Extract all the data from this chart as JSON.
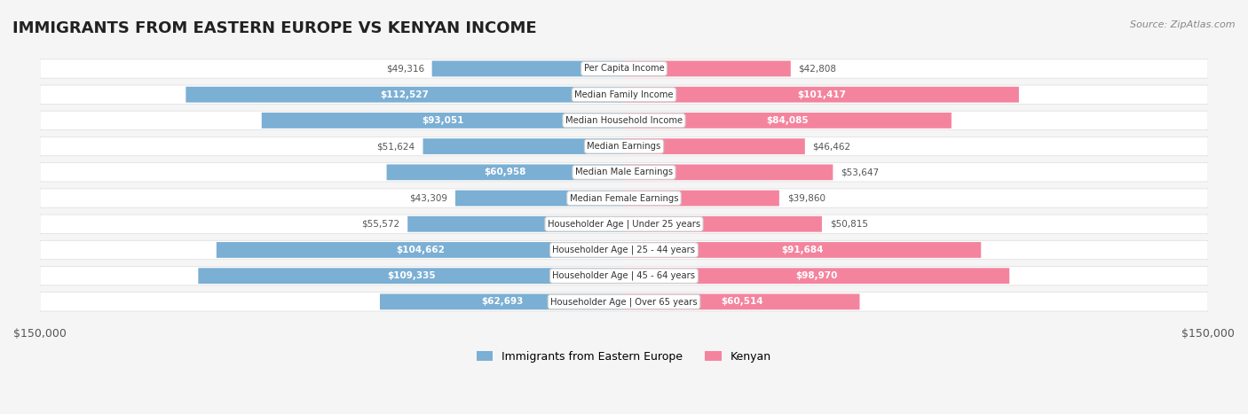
{
  "title": "IMMIGRANTS FROM EASTERN EUROPE VS KENYAN INCOME",
  "source": "Source: ZipAtlas.com",
  "categories": [
    "Per Capita Income",
    "Median Family Income",
    "Median Household Income",
    "Median Earnings",
    "Median Male Earnings",
    "Median Female Earnings",
    "Householder Age | Under 25 years",
    "Householder Age | 25 - 44 years",
    "Householder Age | 45 - 64 years",
    "Householder Age | Over 65 years"
  ],
  "eastern_europe": [
    49316,
    112527,
    93051,
    51624,
    60958,
    43309,
    55572,
    104662,
    109335,
    62693
  ],
  "kenyan": [
    42808,
    101417,
    84085,
    46462,
    53647,
    39860,
    50815,
    91684,
    98970,
    60514
  ],
  "max_val": 150000,
  "color_eastern": "#7bafd4",
  "color_kenyan": "#f4849e",
  "color_eastern_dark": "#5a8fc4",
  "color_kenyan_dark": "#f06080",
  "bg_color": "#f5f5f5",
  "row_bg": "#ffffff",
  "row_bg_alt": "#f0f0f0",
  "label_bg": "#ffffff",
  "label_border": "#cccccc"
}
